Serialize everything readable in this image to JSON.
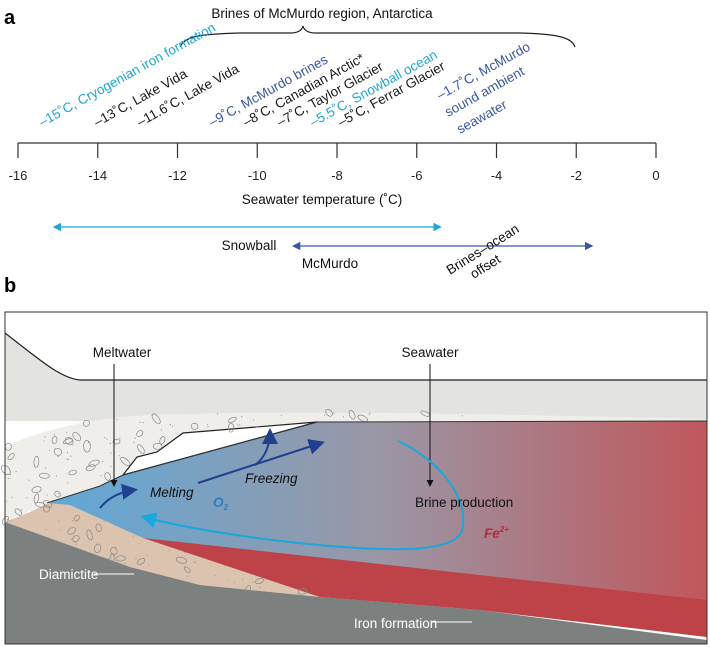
{
  "panel_a": {
    "letter": "a",
    "bracket_title": "Brines of McMurdo region, Antarctica",
    "axis": {
      "title": "Seawater temperature (˚C)",
      "range": [
        -16,
        0
      ],
      "ticks": [
        "-16",
        "-14",
        "-12",
        "-10",
        "-8",
        "-6",
        "-4",
        "-2",
        "0"
      ]
    },
    "annotations": [
      {
        "temp": -15,
        "text": "–15˚C, Cryogenian iron formation",
        "color": "#1aa7d9"
      },
      {
        "temp": -13,
        "text": "–13˚C, Lake Vida",
        "color": "#1a1a1a"
      },
      {
        "temp": -11.6,
        "text": "–11.6˚C, Lake Vida",
        "color": "#1a1a1a"
      },
      {
        "temp": -9,
        "text": "–9˚C, McMurdo brines",
        "color": "#3a56a6"
      },
      {
        "temp": -8,
        "text": "–8˚C, Canadian Arctic*",
        "color": "#1a1a1a"
      },
      {
        "temp": -7,
        "text": "–7˚C, Taylor Glacier",
        "color": "#1a1a1a"
      },
      {
        "temp": -5.5,
        "text": "–5.5˚C, Snowball ocean",
        "color": "#1aa7d9"
      },
      {
        "temp": -5,
        "text": "–5˚C, Ferrar Glacier",
        "color": "#1a1a1a"
      }
    ],
    "ambient": {
      "lines": [
        "–1.7˚C, McMurdo",
        "sound ambient",
        "seawater"
      ],
      "color": "#3a56a6"
    },
    "ranges": [
      {
        "label": "Snowball",
        "from": -15,
        "to": -5.5,
        "color": "#1aa7d9"
      },
      {
        "label": "McMurdo",
        "from": -9,
        "to": -1.7,
        "color": "#3a56a6"
      }
    ],
    "offset_label": [
      "Brines–ocean",
      "offset"
    ]
  },
  "panel_b": {
    "letter": "b",
    "labels": {
      "meltwater": "Meltwater",
      "seawater": "Seawater",
      "melting": "Melting",
      "freezing": "Freezing",
      "o2": "O",
      "o2_sub": "2",
      "brine": "Brine production",
      "fe": "Fe",
      "fe_sup": "2+",
      "diamictite": "Diamictite",
      "iron_formation": "Iron formation"
    },
    "colors": {
      "ice": "#e3e4e0",
      "sediment": "#efeeea",
      "diamictite": "#dcc3b0",
      "bedrock": "#7c807f",
      "water_cold": "#5fa9d8",
      "water_mid": "#9a97a6",
      "water_warm": "#c0575c",
      "iron": "#bd4348",
      "arrow_dark": "#1f3f8f",
      "arrow_cyan": "#1aa7d9"
    }
  }
}
